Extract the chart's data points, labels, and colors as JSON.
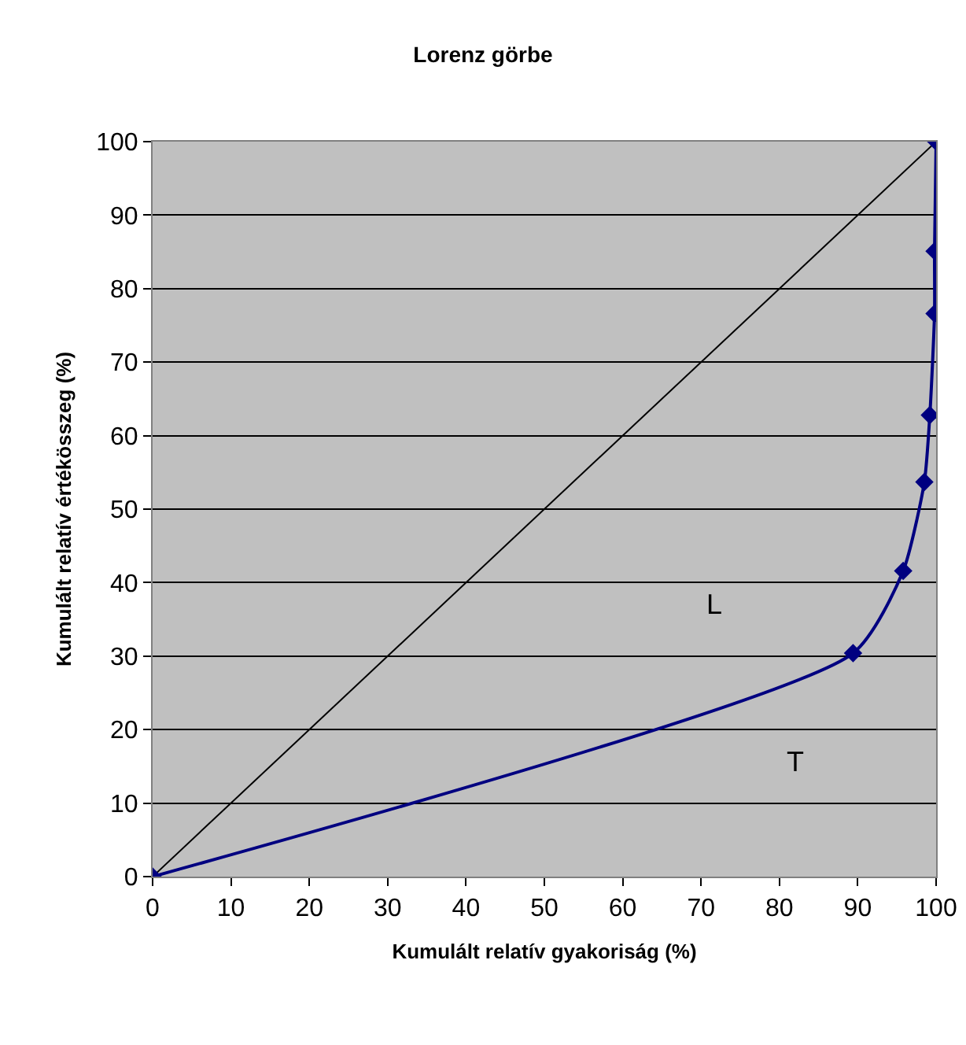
{
  "chart_data": {
    "type": "line",
    "title": "Lorenz görbe",
    "xlabel": "Kumulált relatív gyakoriság (%)",
    "ylabel": "Kumulált relatív értékösszeg (%)",
    "xlim": [
      0,
      100
    ],
    "xticks": [
      0,
      10,
      20,
      30,
      40,
      50,
      60,
      70,
      80,
      90,
      100
    ],
    "ylim": [
      0,
      100
    ],
    "yticks": [
      0,
      10,
      20,
      30,
      40,
      50,
      60,
      70,
      80,
      90,
      100
    ],
    "grid": "y",
    "series": [
      {
        "color": "#000000",
        "x": [
          0,
          100
        ],
        "values": [
          0,
          100
        ],
        "marker": "none"
      },
      {
        "color": "#000080",
        "x": [
          0,
          89.4,
          95.8,
          98.5,
          99.2,
          99.8,
          99.8,
          100
        ],
        "values": [
          0,
          30.4,
          41.6,
          53.7,
          62.8,
          76.6,
          85.1,
          100
        ],
        "marker": "diamond"
      }
    ],
    "annotations": [
      "L",
      "T"
    ]
  }
}
